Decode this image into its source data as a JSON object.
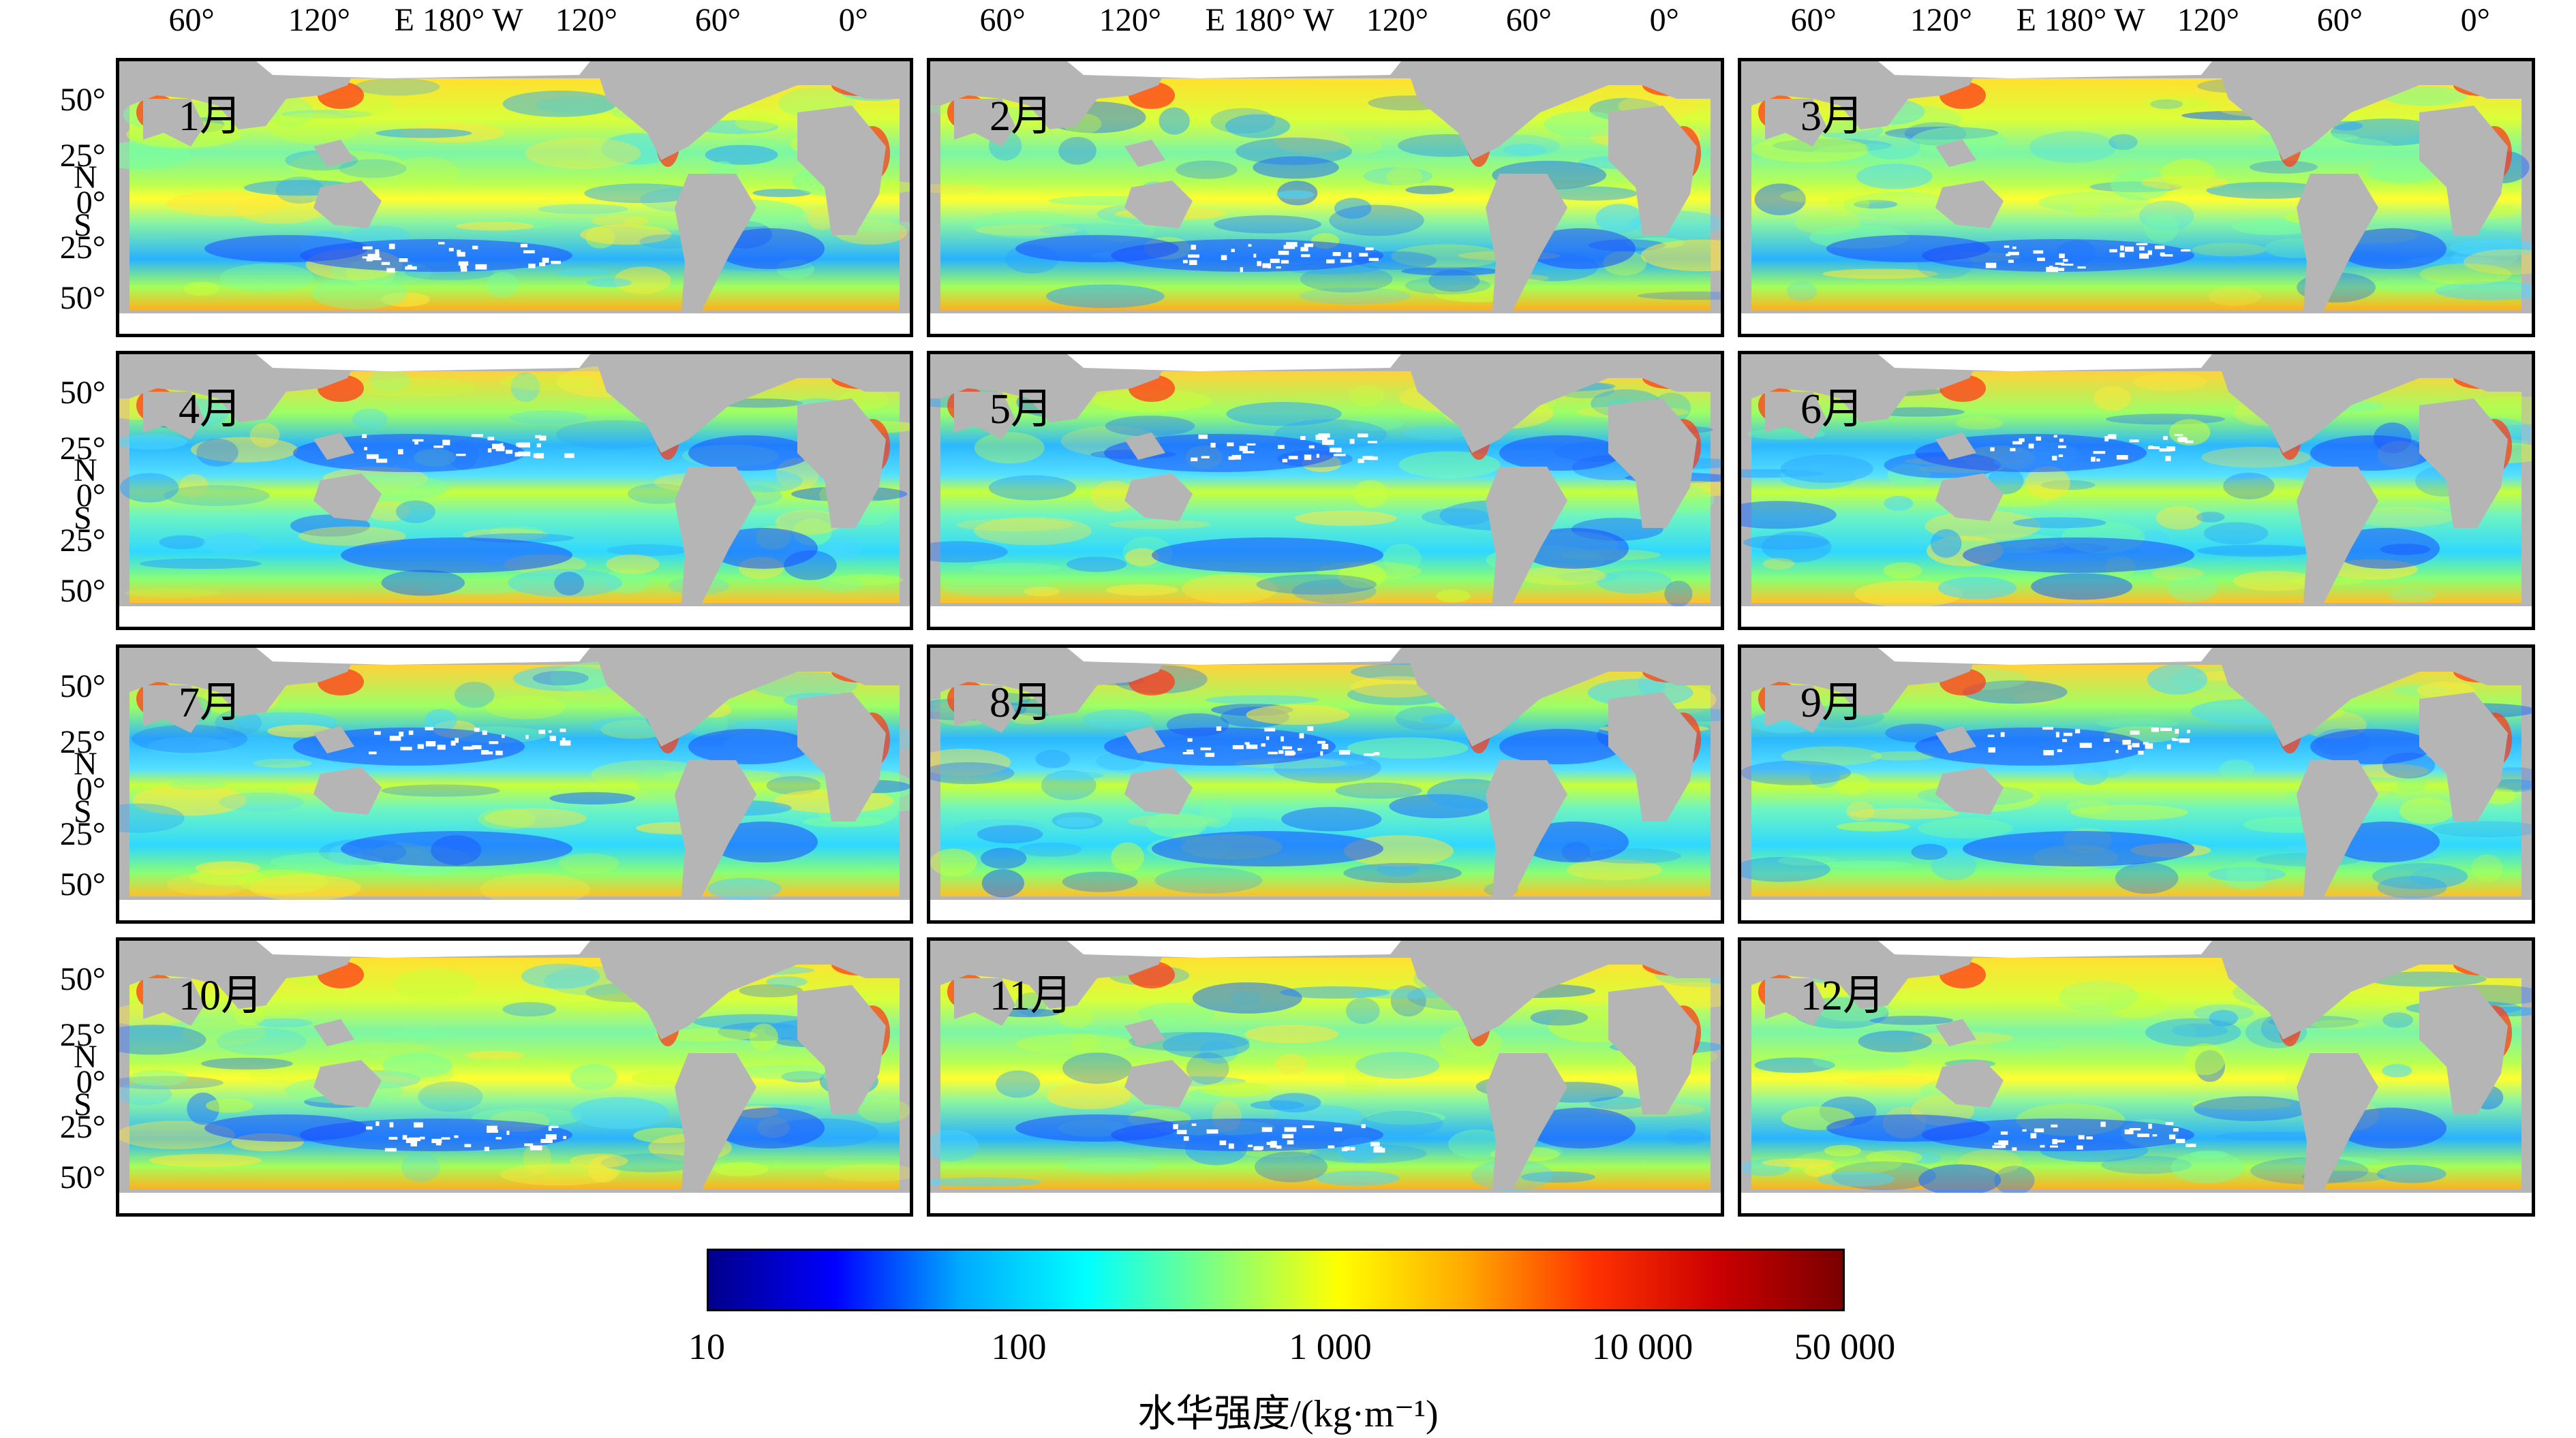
{
  "figure": {
    "lon_labels": [
      "60°",
      "120°",
      "E 180° W",
      "120°",
      "60°",
      "0°"
    ],
    "lat_labels": [
      "50°",
      "25°",
      "0°",
      "25°",
      "50°"
    ],
    "hemisphere_labels": [
      "N",
      "S"
    ],
    "panels": [
      {
        "month": "1月"
      },
      {
        "month": "2月"
      },
      {
        "month": "3月"
      },
      {
        "month": "4月"
      },
      {
        "month": "5月"
      },
      {
        "month": "6月"
      },
      {
        "month": "7月"
      },
      {
        "month": "8月"
      },
      {
        "month": "9月"
      },
      {
        "month": "10月"
      },
      {
        "month": "11月"
      },
      {
        "month": "12月"
      }
    ],
    "colorbar": {
      "title": "水华强度/(kg·m⁻¹)",
      "ticks": [
        "10",
        "100",
        "1 000",
        "10 000",
        "50 000"
      ],
      "colors": [
        "#00008b",
        "#0000ff",
        "#00aaff",
        "#00ffff",
        "#7fff7f",
        "#ffff00",
        "#ffaa00",
        "#ff3300",
        "#cc0000",
        "#7a0000"
      ]
    },
    "land_color": "#b5b5b5",
    "nodata_color": "#ffffff"
  }
}
